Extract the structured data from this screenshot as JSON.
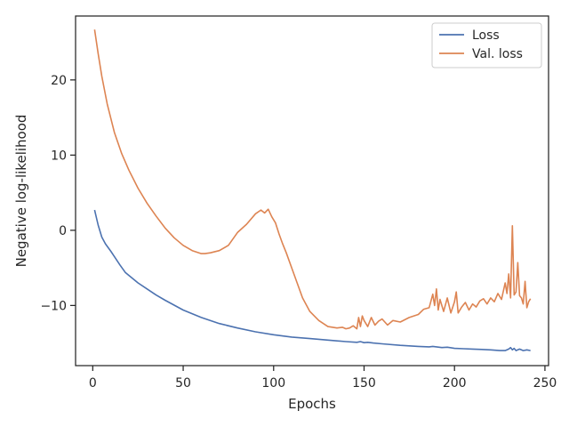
{
  "chart_data": {
    "type": "line",
    "title": "",
    "xlabel": "Epochs",
    "ylabel": "Negative log-likelihood",
    "xlim": [
      -9.5,
      252
    ],
    "ylim": [
      -18,
      28.5
    ],
    "xticks": [
      0,
      50,
      100,
      150,
      200,
      250
    ],
    "xtick_labels": [
      "0",
      "50",
      "100",
      "150",
      "200",
      "250"
    ],
    "yticks": [
      -10,
      0,
      10,
      20
    ],
    "ytick_labels": [
      "−10",
      "0",
      "10",
      "20"
    ],
    "grid": false,
    "legend_position": "top-right",
    "series": [
      {
        "name": "Loss",
        "color": "#4c72b0",
        "x": [
          1,
          3,
          5,
          7,
          10,
          15,
          18,
          20,
          25,
          30,
          35,
          40,
          50,
          60,
          70,
          80,
          90,
          100,
          110,
          120,
          130,
          140,
          146,
          148,
          150,
          152,
          155,
          160,
          170,
          180,
          186,
          188,
          190,
          193,
          196,
          200,
          205,
          210,
          215,
          220,
          225,
          228,
          230,
          231,
          232,
          233,
          234,
          236,
          238,
          240,
          242
        ],
        "y": [
          2.7,
          0.7,
          -0.9,
          -1.8,
          -2.8,
          -4.6,
          -5.6,
          -6.0,
          -7.0,
          -7.8,
          -8.6,
          -9.3,
          -10.6,
          -11.6,
          -12.4,
          -13.0,
          -13.5,
          -13.9,
          -14.2,
          -14.4,
          -14.6,
          -14.8,
          -14.9,
          -14.8,
          -14.95,
          -14.9,
          -15.0,
          -15.1,
          -15.3,
          -15.45,
          -15.5,
          -15.45,
          -15.5,
          -15.6,
          -15.55,
          -15.7,
          -15.75,
          -15.8,
          -15.85,
          -15.9,
          -16.0,
          -16.0,
          -15.8,
          -15.6,
          -15.9,
          -15.7,
          -16.0,
          -15.8,
          -16.0,
          -15.9,
          -16.0
        ]
      },
      {
        "name": "Val. loss",
        "color": "#dd8452",
        "x": [
          1,
          3,
          5,
          8,
          12,
          16,
          20,
          25,
          30,
          35,
          40,
          45,
          50,
          55,
          60,
          62,
          65,
          70,
          75,
          80,
          85,
          90,
          93,
          95,
          97,
          99,
          101,
          103,
          105,
          107,
          110,
          113,
          116,
          120,
          125,
          130,
          135,
          138,
          140,
          142,
          144,
          146,
          147,
          148,
          149,
          150,
          152,
          154,
          156,
          158,
          160,
          163,
          166,
          170,
          175,
          180,
          183,
          186,
          188,
          189,
          190,
          191,
          192,
          194,
          196,
          198,
          200,
          201,
          202,
          204,
          206,
          208,
          210,
          212,
          214,
          216,
          218,
          220,
          222,
          224,
          226,
          228,
          229,
          230,
          231,
          232,
          233,
          234,
          235,
          236,
          237,
          238,
          239,
          240,
          241,
          242
        ],
        "y": [
          26.7,
          23.5,
          20.5,
          16.8,
          13.0,
          10.2,
          8.0,
          5.6,
          3.6,
          1.9,
          0.3,
          -1.0,
          -2.0,
          -2.7,
          -3.1,
          -3.1,
          -3.0,
          -2.7,
          -2.0,
          -0.3,
          0.8,
          2.2,
          2.7,
          2.3,
          2.8,
          1.8,
          1.0,
          -0.5,
          -1.8,
          -3.0,
          -5.0,
          -7.0,
          -9.0,
          -10.8,
          -12.0,
          -12.8,
          -13.0,
          -12.9,
          -13.1,
          -13.0,
          -12.7,
          -13.1,
          -11.6,
          -12.8,
          -11.4,
          -12.0,
          -12.8,
          -11.6,
          -12.6,
          -12.1,
          -11.8,
          -12.6,
          -12.0,
          -12.2,
          -11.6,
          -11.2,
          -10.5,
          -10.3,
          -8.5,
          -10.0,
          -7.8,
          -10.6,
          -9.2,
          -10.8,
          -9.0,
          -11.0,
          -9.5,
          -8.2,
          -11.0,
          -10.2,
          -9.6,
          -10.6,
          -9.8,
          -10.2,
          -9.4,
          -9.1,
          -9.8,
          -9.0,
          -9.5,
          -8.4,
          -9.2,
          -7.0,
          -8.4,
          -5.8,
          -9.0,
          0.6,
          -8.6,
          -8.2,
          -4.3,
          -8.7,
          -9.0,
          -9.8,
          -6.8,
          -10.3,
          -9.5,
          -9.1
        ]
      }
    ]
  }
}
